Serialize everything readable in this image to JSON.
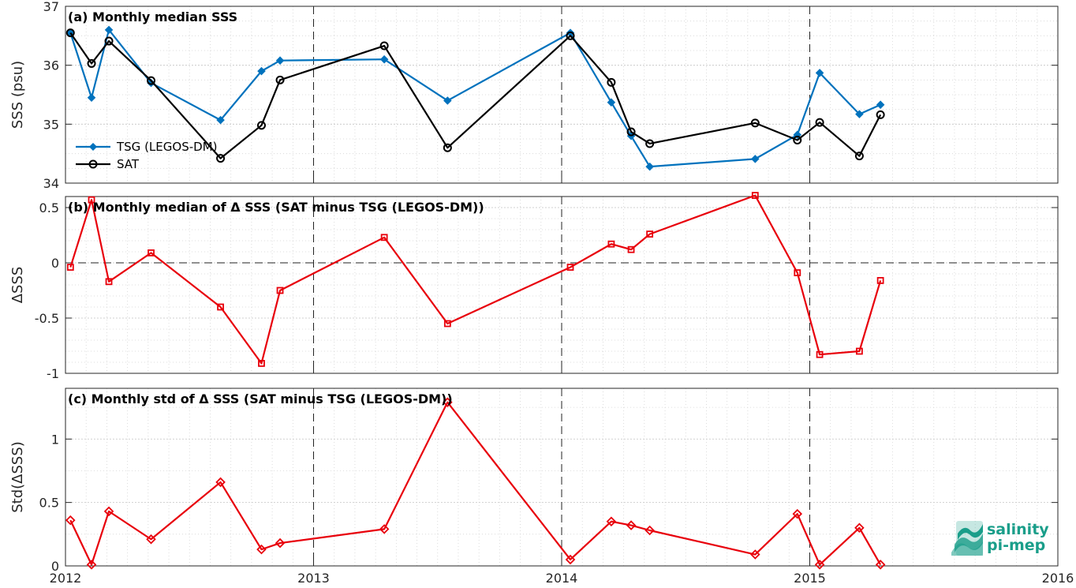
{
  "chart_data": [
    {
      "type": "line",
      "panel_id": "a",
      "title": "(a) Monthly median SSS",
      "ylabel": "SSS (psu)",
      "xlim": [
        2012,
        2016
      ],
      "ylim": [
        34,
        37
      ],
      "yticks": [
        34,
        35,
        36,
        37
      ],
      "grid": true,
      "legend_position": "left",
      "series": [
        {
          "name": "TSG (LEGOS-DM)",
          "color": "#0072BD",
          "marker": "diamond",
          "x": [
            2012.02,
            2012.105,
            2012.175,
            2012.345,
            2012.625,
            2012.79,
            2012.865,
            2013.285,
            2013.54,
            2014.035,
            2014.2,
            2014.28,
            2014.355,
            2014.78,
            2014.95,
            2015.04,
            2015.2,
            2015.285
          ],
          "values": [
            36.55,
            35.45,
            36.6,
            35.7,
            35.07,
            35.9,
            36.08,
            36.1,
            35.4,
            36.55,
            35.37,
            34.8,
            34.28,
            34.41,
            34.82,
            35.87,
            35.17,
            35.33
          ]
        },
        {
          "name": "SAT",
          "color": "#000000",
          "marker": "circle",
          "x": [
            2012.02,
            2012.105,
            2012.175,
            2012.345,
            2012.625,
            2012.79,
            2012.865,
            2013.285,
            2013.54,
            2014.035,
            2014.2,
            2014.28,
            2014.355,
            2014.78,
            2014.95,
            2015.04,
            2015.2,
            2015.285
          ],
          "values": [
            36.55,
            36.03,
            36.41,
            35.74,
            34.42,
            34.98,
            35.75,
            36.33,
            34.6,
            36.5,
            35.71,
            34.87,
            34.67,
            35.02,
            34.73,
            35.03,
            34.46,
            35.16
          ]
        }
      ]
    },
    {
      "type": "line",
      "panel_id": "b",
      "title": "(b) Monthly median of Δ SSS (SAT minus TSG (LEGOS-DM))",
      "ylabel": "ΔSSS",
      "xlim": [
        2012,
        2016
      ],
      "ylim": [
        -1,
        0.6
      ],
      "yticks": [
        -1,
        -0.5,
        0,
        0.5
      ],
      "ytick_labels": [
        "-1",
        "-0.5",
        "0",
        "0.5"
      ],
      "zero_line": true,
      "grid": true,
      "series": [
        {
          "color": "#E8000B",
          "marker": "square",
          "x": [
            2012.02,
            2012.105,
            2012.175,
            2012.345,
            2012.625,
            2012.79,
            2012.865,
            2013.285,
            2013.54,
            2014.035,
            2014.2,
            2014.28,
            2014.355,
            2014.78,
            2014.95,
            2015.04,
            2015.2,
            2015.285
          ],
          "values": [
            -0.04,
            0.57,
            -0.17,
            0.09,
            -0.4,
            -0.91,
            -0.25,
            0.23,
            -0.55,
            -0.04,
            0.17,
            0.12,
            0.26,
            0.61,
            -0.09,
            -0.83,
            -0.8,
            -0.16
          ]
        }
      ]
    },
    {
      "type": "line",
      "panel_id": "c",
      "title": "(c) Monthly std of Δ SSS (SAT minus TSG (LEGOS-DM))",
      "ylabel": "Std(ΔSSS)",
      "xlim": [
        2012,
        2016
      ],
      "ylim": [
        0,
        1.4
      ],
      "yticks": [
        0,
        0.5,
        1
      ],
      "ytick_labels": [
        "0",
        "0.5",
        "1"
      ],
      "xticks": [
        2012,
        2013,
        2014,
        2015,
        2016
      ],
      "xtick_labels": [
        "2012",
        "2013",
        "2014",
        "2015",
        "2016"
      ],
      "grid": true,
      "series": [
        {
          "color": "#E8000B",
          "marker": "diamond",
          "x": [
            2012.02,
            2012.105,
            2012.175,
            2012.345,
            2012.625,
            2012.79,
            2012.865,
            2013.285,
            2013.54,
            2014.035,
            2014.2,
            2014.28,
            2014.355,
            2014.78,
            2014.95,
            2015.04,
            2015.2,
            2015.285
          ],
          "values": [
            0.36,
            0.01,
            0.43,
            0.21,
            0.66,
            0.13,
            0.18,
            0.29,
            1.29,
            0.05,
            0.35,
            0.32,
            0.28,
            0.09,
            0.41,
            0.01,
            0.3,
            0.01
          ]
        }
      ]
    }
  ],
  "logo": {
    "line1": "salinity",
    "line2": "pi-mep",
    "color": "#1a9e8a"
  }
}
